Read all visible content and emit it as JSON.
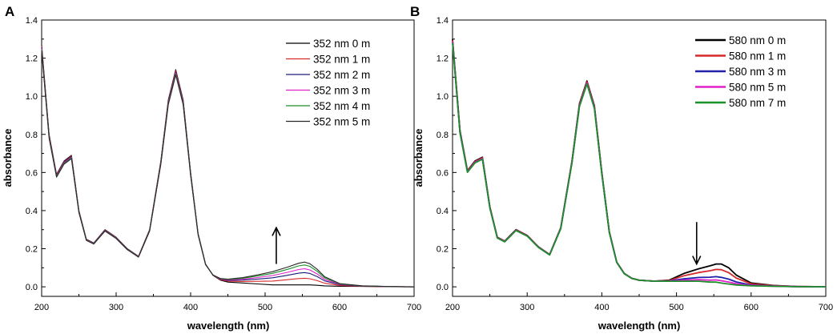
{
  "chart_data": [
    {
      "panel_label": "A",
      "type": "line",
      "xlabel": "wavelength (nm)",
      "ylabel": "absorbance",
      "xlim": [
        200,
        700
      ],
      "ylim": [
        -0.05,
        1.4
      ],
      "xticks": [
        200,
        300,
        400,
        500,
        600,
        700
      ],
      "yticks": [
        0.0,
        0.2,
        0.4,
        0.6,
        0.8,
        1.0,
        1.2,
        1.4
      ],
      "ytick_labels": [
        "0.0",
        "0.2",
        "0.4",
        "0.6",
        "0.8",
        "1.0",
        "1.2",
        "1.4"
      ],
      "legend_position": "top-right",
      "annotation": {
        "type": "arrow",
        "direction": "up",
        "x": 515,
        "y_from": 0.12,
        "y_to": 0.31
      },
      "x": [
        200,
        210,
        220,
        230,
        240,
        250,
        260,
        270,
        285,
        300,
        315,
        330,
        345,
        360,
        370,
        380,
        390,
        400,
        410,
        420,
        430,
        440,
        450,
        470,
        490,
        510,
        530,
        545,
        553,
        560,
        570,
        580,
        600,
        630,
        660,
        700
      ],
      "base": [
        1.27,
        0.8,
        0.59,
        0.66,
        0.69,
        0.4,
        0.25,
        0.23,
        0.3,
        0.26,
        0.2,
        0.16,
        0.3,
        0.66,
        0.98,
        1.14,
        0.98,
        0.6,
        0.28,
        0.12,
        0.06,
        0.035,
        0.025,
        0.02,
        0.015,
        0.01,
        0.01,
        0.01,
        0.01,
        0.01,
        0.008,
        0.005,
        0.003,
        0.002,
        0.001,
        0.0
      ],
      "band_shape": [
        0,
        0,
        0,
        0,
        0,
        0,
        0,
        0,
        0,
        0,
        0,
        0,
        0,
        0,
        0,
        0,
        0,
        0,
        0,
        0,
        0.03,
        0.08,
        0.13,
        0.24,
        0.4,
        0.58,
        0.78,
        0.95,
        1.0,
        0.93,
        0.7,
        0.4,
        0.12,
        0.03,
        0.01,
        0
      ],
      "series": [
        {
          "name": "352 nm 0 m",
          "color": "#000000",
          "band_amplitude": 0.0,
          "peak_scale": 1.0
        },
        {
          "name": "352 nm 1 m",
          "color": "#d62a2a",
          "band_amplitude": 0.035,
          "peak_scale": 0.995
        },
        {
          "name": "352 nm 2 m",
          "color": "#1c1c7a",
          "band_amplitude": 0.065,
          "peak_scale": 0.99
        },
        {
          "name": "352 nm 3 m",
          "color": "#e020c8",
          "band_amplitude": 0.085,
          "peak_scale": 0.985
        },
        {
          "name": "352 nm 4 m",
          "color": "#1a8f2a",
          "band_amplitude": 0.105,
          "peak_scale": 0.98
        },
        {
          "name": "352 nm 5 m",
          "color": "#2a2a2a",
          "band_amplitude": 0.12,
          "peak_scale": 0.975
        }
      ]
    },
    {
      "panel_label": "B",
      "type": "line",
      "xlabel": "wavelength (nm)",
      "ylabel": "absorbance",
      "xlim": [
        200,
        700
      ],
      "ylim": [
        -0.05,
        1.4
      ],
      "xticks": [
        200,
        300,
        400,
        500,
        600,
        700
      ],
      "yticks": [
        0.0,
        0.2,
        0.4,
        0.6,
        0.8,
        1.0,
        1.2,
        1.4
      ],
      "ytick_labels": [
        "0.0",
        "0.2",
        "0.4",
        "0.6",
        "0.8",
        "1.0",
        "1.2",
        "1.4"
      ],
      "legend_position": "top-right",
      "annotation": {
        "type": "arrow",
        "direction": "down",
        "x": 527,
        "y_from": 0.34,
        "y_to": 0.12
      },
      "x": [
        200,
        210,
        220,
        230,
        240,
        250,
        260,
        270,
        285,
        300,
        315,
        330,
        345,
        360,
        370,
        380,
        390,
        400,
        410,
        420,
        430,
        440,
        450,
        470,
        490,
        510,
        530,
        545,
        553,
        560,
        570,
        580,
        600,
        630,
        660,
        700
      ],
      "base": [
        1.3,
        0.82,
        0.61,
        0.66,
        0.68,
        0.42,
        0.26,
        0.24,
        0.3,
        0.27,
        0.21,
        0.17,
        0.31,
        0.66,
        0.96,
        1.08,
        0.95,
        0.6,
        0.29,
        0.13,
        0.07,
        0.045,
        0.035,
        0.03,
        0.03,
        0.03,
        0.03,
        0.025,
        0.025,
        0.02,
        0.015,
        0.01,
        0.005,
        0.003,
        0.001,
        0.0
      ],
      "band_shape": [
        0,
        0,
        0,
        0,
        0,
        0,
        0,
        0,
        0,
        0,
        0,
        0,
        0,
        0,
        0,
        0,
        0,
        0,
        0,
        0,
        0,
        0,
        0,
        0,
        0.05,
        0.4,
        0.65,
        0.85,
        0.95,
        1.0,
        0.85,
        0.52,
        0.15,
        0.04,
        0.01,
        0
      ],
      "series": [
        {
          "name": "580 nm 0 m",
          "color": "#000000",
          "band_amplitude": 0.1,
          "peak_scale": 1.0
        },
        {
          "name": "580 nm 1 m",
          "color": "#d62a2a",
          "band_amplitude": 0.07,
          "peak_scale": 0.995
        },
        {
          "name": "580 nm 3 m",
          "color": "#2020a8",
          "band_amplitude": 0.03,
          "peak_scale": 0.99
        },
        {
          "name": "580 nm 5 m",
          "color": "#e020c8",
          "band_amplitude": 0.012,
          "peak_scale": 0.99
        },
        {
          "name": "580 nm 7 m",
          "color": "#1a8f2a",
          "band_amplitude": 0.0,
          "peak_scale": 0.985
        }
      ]
    }
  ]
}
